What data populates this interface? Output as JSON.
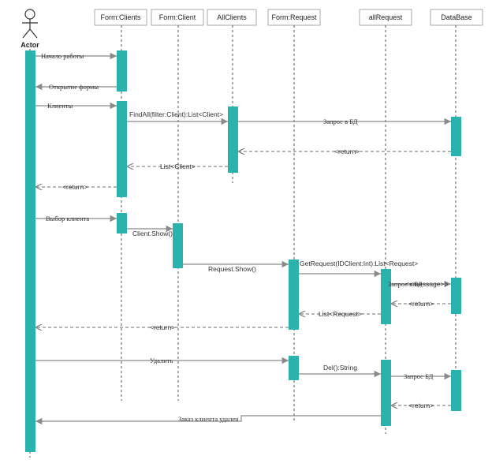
{
  "actor": {
    "label": "Actor"
  },
  "lifelines": [
    {
      "id": "form-clients",
      "label": "Form:Clients"
    },
    {
      "id": "form-client",
      "label": "Form:Client"
    },
    {
      "id": "allclients",
      "label": "AllClients"
    },
    {
      "id": "form-request",
      "label": "Form:Request"
    },
    {
      "id": "allrequest",
      "label": "allRequest"
    },
    {
      "id": "database",
      "label": "DataBase"
    }
  ],
  "messages": {
    "start": "Начало работы",
    "open_form": "Открытие формы",
    "clients": "Клиенты",
    "findall": "FindAll(filter:Client):List<Client>",
    "query_db_1": "Запрос в БД",
    "return_1": "<return>",
    "list_client": "List<Client>",
    "return_2": "<return>",
    "select_client": "Выбор клиента",
    "client_show": "Client.Show()",
    "request_show": "Request.Show()",
    "getrequest": "GetRequest(IDClient:Int):List<Request>",
    "query_db_2": "Запрос в БД",
    "message_overlap": "<<message>>",
    "return_3": "<return>",
    "list_request": "List<Request>",
    "return_4": "<return>",
    "delete": "Удалить",
    "del_string": "Del():String",
    "query_db_3": "Запрос БД",
    "return_5": "<return>",
    "order_deleted": "Заказ клиента удален"
  },
  "colors": {
    "activation": "#2ab3ad",
    "arrow": "#8a8a8a",
    "lifeline": "#555555",
    "header_border": "#aaaaaa"
  }
}
